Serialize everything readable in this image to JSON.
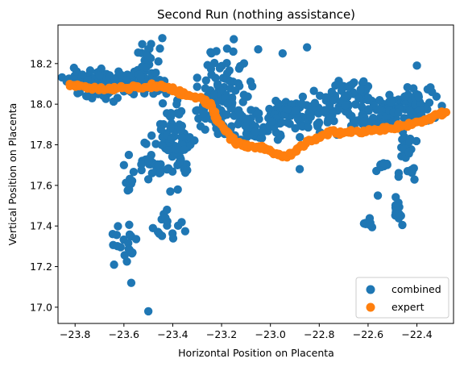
{
  "chart_data": {
    "type": "scatter",
    "title": "Second Run (nothing assistance)",
    "xlabel": "Horizontal Position on Placenta",
    "ylabel": "Vertical Position on Placenta",
    "xlim": [
      -23.87,
      -22.25
    ],
    "ylim": [
      16.92,
      18.39
    ],
    "x_ticks": [
      -23.8,
      -23.6,
      -23.4,
      -23.2,
      -23.0,
      -22.8,
      -22.6,
      -22.4
    ],
    "x_tick_labels": [
      "−23.8",
      "−23.6",
      "−23.4",
      "−23.2",
      "−23.0",
      "−22.8",
      "−22.6",
      "−22.4"
    ],
    "y_ticks": [
      17.0,
      17.2,
      17.4,
      17.6,
      17.8,
      18.0,
      18.2
    ],
    "y_tick_labels": [
      "17.0",
      "17.2",
      "17.4",
      "17.6",
      "17.8",
      "18.0",
      "18.2"
    ],
    "grid": false,
    "legend_position": "lower-right",
    "series": [
      {
        "name": "combined",
        "color": "#1f77b4",
        "clusters": [
          {
            "x": -23.72,
            "y": 18.1,
            "sx": 0.06,
            "sy": 0.035,
            "n": 90
          },
          {
            "x": -23.55,
            "y": 18.11,
            "sx": 0.07,
            "sy": 0.035,
            "n": 50
          },
          {
            "x": -23.48,
            "y": 18.18,
            "sx": 0.035,
            "sy": 0.06,
            "n": 25
          },
          {
            "x": -23.4,
            "y": 17.82,
            "sx": 0.035,
            "sy": 0.1,
            "n": 60
          },
          {
            "x": -23.5,
            "y": 17.72,
            "sx": 0.03,
            "sy": 0.04,
            "n": 18
          },
          {
            "x": -23.35,
            "y": 17.78,
            "sx": 0.02,
            "sy": 0.07,
            "n": 20
          },
          {
            "x": -23.22,
            "y": 17.98,
            "sx": 0.06,
            "sy": 0.07,
            "n": 80
          },
          {
            "x": -23.18,
            "y": 18.15,
            "sx": 0.04,
            "sy": 0.08,
            "n": 25
          },
          {
            "x": -23.05,
            "y": 17.9,
            "sx": 0.06,
            "sy": 0.04,
            "n": 50
          },
          {
            "x": -22.92,
            "y": 17.94,
            "sx": 0.05,
            "sy": 0.05,
            "n": 50
          },
          {
            "x": -22.75,
            "y": 17.96,
            "sx": 0.06,
            "sy": 0.06,
            "n": 60
          },
          {
            "x": -22.65,
            "y": 18.05,
            "sx": 0.05,
            "sy": 0.05,
            "n": 40
          },
          {
            "x": -22.52,
            "y": 17.95,
            "sx": 0.06,
            "sy": 0.05,
            "n": 60
          },
          {
            "x": -22.4,
            "y": 18.0,
            "sx": 0.04,
            "sy": 0.05,
            "n": 50
          },
          {
            "x": -22.44,
            "y": 17.78,
            "sx": 0.02,
            "sy": 0.07,
            "n": 30
          },
          {
            "x": -22.54,
            "y": 17.7,
            "sx": 0.015,
            "sy": 0.015,
            "n": 8
          },
          {
            "x": -22.49,
            "y": 17.47,
            "sx": 0.025,
            "sy": 0.025,
            "n": 15
          },
          {
            "x": -22.6,
            "y": 17.41,
            "sx": 0.015,
            "sy": 0.015,
            "n": 8
          },
          {
            "x": -23.58,
            "y": 17.31,
            "sx": 0.035,
            "sy": 0.04,
            "n": 20
          },
          {
            "x": -23.43,
            "y": 17.4,
            "sx": 0.04,
            "sy": 0.06,
            "n": 15
          },
          {
            "x": -23.57,
            "y": 17.6,
            "sx": 0.02,
            "sy": 0.04,
            "n": 10
          }
        ],
        "points": [
          [
            -23.5,
            16.98
          ],
          [
            -23.57,
            17.12
          ],
          [
            -23.41,
            17.57
          ],
          [
            -23.58,
            17.75
          ],
          [
            -23.6,
            17.7
          ],
          [
            -23.5,
            17.63
          ],
          [
            -23.15,
            18.32
          ],
          [
            -23.05,
            18.27
          ],
          [
            -22.85,
            18.28
          ],
          [
            -22.4,
            18.19
          ],
          [
            -22.88,
            17.68
          ],
          [
            -22.56,
            17.55
          ],
          [
            -23.3,
            17.97
          ],
          [
            -23.3,
            18.13
          ],
          [
            -22.95,
            18.25
          ]
        ]
      },
      {
        "name": "expert",
        "color": "#ff7f0e",
        "path": [
          [
            -23.82,
            18.1
          ],
          [
            -23.75,
            18.08
          ],
          [
            -23.68,
            18.07
          ],
          [
            -23.6,
            18.08
          ],
          [
            -23.52,
            18.09
          ],
          [
            -23.45,
            18.09
          ],
          [
            -23.4,
            18.07
          ],
          [
            -23.35,
            18.05
          ],
          [
            -23.28,
            18.03
          ],
          [
            -23.25,
            18.0
          ],
          [
            -23.22,
            17.93
          ],
          [
            -23.18,
            17.86
          ],
          [
            -23.14,
            17.81
          ],
          [
            -23.08,
            17.79
          ],
          [
            -23.02,
            17.78
          ],
          [
            -22.97,
            17.75
          ],
          [
            -22.93,
            17.74
          ],
          [
            -22.88,
            17.79
          ],
          [
            -22.82,
            17.83
          ],
          [
            -22.75,
            17.86
          ],
          [
            -22.68,
            17.86
          ],
          [
            -22.6,
            17.87
          ],
          [
            -22.53,
            17.88
          ],
          [
            -22.47,
            17.89
          ],
          [
            -22.4,
            17.91
          ],
          [
            -22.35,
            17.93
          ],
          [
            -22.31,
            17.95
          ],
          [
            -22.28,
            17.96
          ]
        ]
      }
    ]
  }
}
